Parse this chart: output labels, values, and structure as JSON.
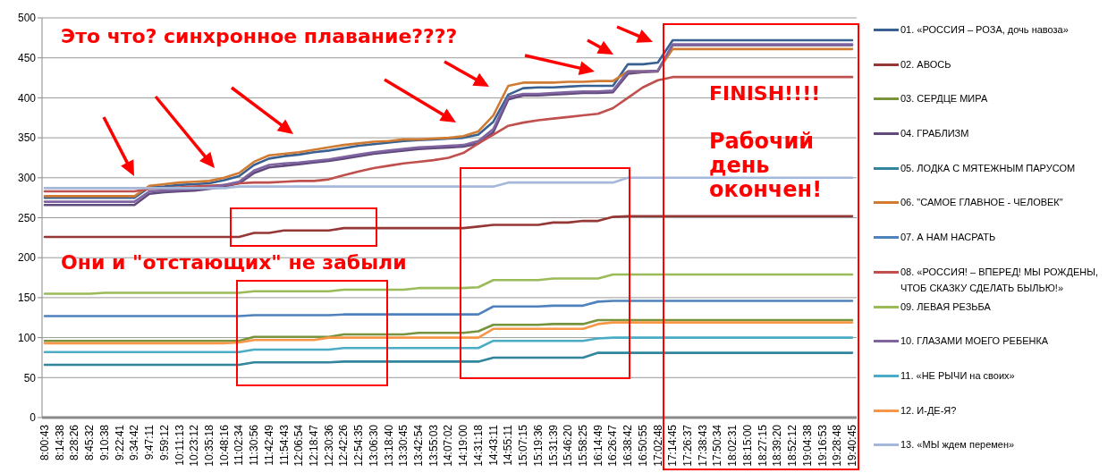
{
  "chart_data": {
    "type": "line",
    "categories": [
      "8:00:43",
      "8:14:38",
      "8:28:26",
      "8:45:32",
      "9:10:38",
      "9:22:41",
      "9:34:42",
      "9:47:11",
      "9:59:12",
      "10:11:13",
      "10:23:12",
      "10:35:18",
      "10:48:16",
      "11:02:34",
      "11:30:56",
      "11:42:49",
      "11:54:43",
      "12:06:54",
      "12:18:47",
      "12:30:36",
      "12:42:26",
      "12:54:35",
      "13:06:30",
      "13:18:40",
      "13:30:45",
      "13:42:54",
      "13:55:03",
      "14:07:02",
      "14:19:00",
      "14:31:18",
      "14:43:11",
      "14:55:11",
      "15:07:15",
      "15:19:36",
      "15:31:39",
      "15:46:20",
      "15:58:25",
      "16:14:49",
      "16:26:47",
      "16:38:42",
      "16:50:55",
      "17:02:48",
      "17:14:45",
      "17:26:37",
      "17:38:43",
      "17:50:34",
      "18:02:31",
      "18:15:00",
      "18:27:15",
      "18:39:20",
      "18:52:12",
      "19:04:38",
      "19:16:53",
      "19:28:48",
      "19:40:45"
    ],
    "series": [
      {
        "name": "01. «РОССИЯ – РОЗА, дочь навоза»",
        "color": "#386192",
        "values": [
          275,
          275,
          275,
          275,
          275,
          275,
          275,
          288,
          289,
          291,
          292,
          293,
          297,
          302,
          316,
          324,
          327,
          329,
          332,
          334,
          337,
          340,
          342,
          344,
          346,
          347,
          348,
          349,
          350,
          354,
          370,
          404,
          412,
          413,
          413,
          414,
          415,
          415,
          415,
          442,
          442,
          444,
          472,
          472,
          472,
          472,
          472,
          472,
          472,
          472,
          472,
          472,
          472,
          472,
          472
        ]
      },
      {
        "name": "02. АВОСЬ",
        "color": "#953735",
        "values": [
          226,
          226,
          226,
          226,
          226,
          226,
          226,
          226,
          226,
          226,
          226,
          226,
          226,
          226,
          231,
          231,
          234,
          234,
          234,
          234,
          237,
          237,
          237,
          237,
          237,
          237,
          237,
          237,
          237,
          239,
          241,
          241,
          241,
          241,
          244,
          244,
          246,
          246,
          251,
          252,
          252,
          252,
          252,
          252,
          252,
          252,
          252,
          252,
          252,
          252,
          252,
          252,
          252,
          252,
          252
        ]
      },
      {
        "name": "03. СЕРДЦЕ МИРА",
        "color": "#77933c",
        "values": [
          96,
          96,
          96,
          96,
          96,
          96,
          96,
          96,
          96,
          96,
          96,
          96,
          96,
          96,
          101,
          101,
          101,
          101,
          101,
          101,
          104,
          104,
          104,
          104,
          104,
          106,
          106,
          106,
          106,
          108,
          116,
          116,
          116,
          116,
          117,
          117,
          117,
          122,
          122,
          122,
          122,
          122,
          122,
          122,
          122,
          122,
          122,
          122,
          122,
          122,
          122,
          122,
          122,
          122,
          122
        ]
      },
      {
        "name": "04. ГРАБЛИЗМ",
        "color": "#604a7b",
        "values": [
          266,
          266,
          266,
          266,
          266,
          266,
          266,
          280,
          282,
          283,
          284,
          286,
          289,
          293,
          306,
          313,
          315,
          317,
          319,
          321,
          324,
          327,
          330,
          332,
          334,
          336,
          337,
          338,
          339,
          343,
          357,
          398,
          403,
          403,
          404,
          405,
          406,
          406,
          407,
          430,
          432,
          433,
          466,
          466,
          466,
          466,
          466,
          466,
          466,
          466,
          466,
          466,
          466,
          466,
          466
        ]
      },
      {
        "name": "05. ЛОДКА С МЯТЕЖНЫМ ПАРУСОМ",
        "color": "#31859c",
        "values": [
          66,
          66,
          66,
          66,
          66,
          66,
          66,
          66,
          66,
          66,
          66,
          66,
          66,
          66,
          69,
          69,
          69,
          69,
          69,
          69,
          70,
          70,
          70,
          70,
          70,
          70,
          70,
          70,
          70,
          70,
          75,
          75,
          75,
          75,
          75,
          75,
          75,
          81,
          81,
          81,
          81,
          81,
          81,
          81,
          81,
          81,
          81,
          81,
          81,
          81,
          81,
          81,
          81,
          81,
          81
        ]
      },
      {
        "name": "06. \"САМОЕ ГЛАВНОЕ - ЧЕЛОВЕК\"",
        "color": "#d07a32",
        "values": [
          277,
          277,
          277,
          277,
          277,
          277,
          277,
          290,
          292,
          294,
          295,
          296,
          300,
          306,
          320,
          328,
          330,
          332,
          335,
          338,
          341,
          343,
          345,
          346,
          348,
          348,
          349,
          350,
          352,
          358,
          378,
          415,
          419,
          419,
          419,
          420,
          420,
          421,
          421,
          433,
          433,
          434,
          461,
          461,
          461,
          461,
          461,
          461,
          461,
          461,
          461,
          461,
          461,
          461,
          461
        ]
      },
      {
        "name": "07. А НАМ НАСРАТЬ",
        "color": "#4f81bd",
        "values": [
          127,
          127,
          127,
          127,
          127,
          127,
          127,
          127,
          127,
          127,
          127,
          127,
          127,
          127,
          128,
          128,
          128,
          128,
          128,
          128,
          129,
          129,
          129,
          129,
          129,
          129,
          129,
          129,
          129,
          129,
          139,
          139,
          139,
          139,
          140,
          140,
          140,
          145,
          146,
          146,
          146,
          146,
          146,
          146,
          146,
          146,
          146,
          146,
          146,
          146,
          146,
          146,
          146,
          146,
          146
        ]
      },
      {
        "name": "08. «РОССИЯ! – ВПЕРЕД! МЫ РОЖДЕНЫ, ЧТОБ СКАЗКУ СДЕЛАТЬ БЫЛЬЮ!»",
        "color": "#c0504d",
        "values": [
          283,
          283,
          283,
          283,
          283,
          283,
          283,
          286,
          287,
          288,
          289,
          290,
          291,
          293,
          294,
          294,
          295,
          296,
          296,
          298,
          303,
          308,
          312,
          315,
          318,
          320,
          322,
          325,
          331,
          343,
          354,
          365,
          369,
          372,
          374,
          376,
          378,
          380,
          387,
          400,
          413,
          422,
          426,
          426,
          426,
          426,
          426,
          426,
          426,
          426,
          426,
          426,
          426,
          426,
          426
        ]
      },
      {
        "name": "09. ЛЕВАЯ РЕЗЬБА",
        "color": "#9bbb59",
        "values": [
          155,
          155,
          155,
          155,
          156,
          156,
          156,
          156,
          156,
          156,
          156,
          156,
          156,
          156,
          158,
          158,
          158,
          158,
          158,
          158,
          160,
          160,
          160,
          160,
          160,
          162,
          162,
          162,
          162,
          163,
          172,
          172,
          172,
          172,
          174,
          174,
          174,
          174,
          179,
          179,
          179,
          179,
          179,
          179,
          179,
          179,
          179,
          179,
          179,
          179,
          179,
          179,
          179,
          179,
          179
        ]
      },
      {
        "name": "10. ГЛАЗАМИ МОЕГО РЕБЕНКА",
        "color": "#8064a2",
        "values": [
          270,
          270,
          270,
          270,
          270,
          270,
          270,
          283,
          284,
          285,
          286,
          288,
          291,
          295,
          309,
          316,
          318,
          319,
          321,
          323,
          326,
          329,
          332,
          334,
          336,
          338,
          339,
          340,
          341,
          346,
          361,
          401,
          405,
          405,
          406,
          407,
          408,
          408,
          409,
          433,
          433,
          434,
          467,
          467,
          467,
          467,
          467,
          467,
          467,
          467,
          467,
          467,
          467,
          467,
          467
        ]
      },
      {
        "name": "11. «НЕ РЫЧИ на своих»",
        "color": "#4bacc6",
        "values": [
          82,
          82,
          82,
          82,
          82,
          82,
          82,
          82,
          82,
          82,
          82,
          82,
          82,
          82,
          85,
          85,
          85,
          85,
          85,
          85,
          87,
          87,
          87,
          87,
          87,
          87,
          87,
          87,
          87,
          87,
          96,
          96,
          96,
          96,
          96,
          96,
          96,
          99,
          100,
          100,
          100,
          100,
          100,
          100,
          100,
          100,
          100,
          100,
          100,
          100,
          100,
          100,
          100,
          100,
          100
        ]
      },
      {
        "name": "12. И-ДЕ-Я?",
        "color": "#f79646",
        "values": [
          93,
          93,
          93,
          93,
          93,
          93,
          93,
          93,
          93,
          93,
          93,
          93,
          93,
          94,
          97,
          97,
          97,
          97,
          97,
          100,
          100,
          100,
          100,
          100,
          100,
          100,
          100,
          100,
          100,
          100,
          111,
          111,
          111,
          111,
          111,
          111,
          111,
          117,
          119,
          119,
          119,
          119,
          119,
          119,
          119,
          119,
          119,
          119,
          119,
          119,
          119,
          119,
          119,
          119,
          119
        ]
      },
      {
        "name": "13. «МЫ ждем перемен»",
        "color": "#a5b8d9",
        "values": [
          287,
          287,
          287,
          287,
          287,
          287,
          287,
          287,
          287,
          287,
          287,
          287,
          287,
          289,
          289,
          289,
          289,
          289,
          289,
          289,
          289,
          289,
          289,
          289,
          289,
          289,
          289,
          289,
          289,
          289,
          289,
          294,
          294,
          294,
          294,
          294,
          294,
          294,
          294,
          300,
          300,
          300,
          300,
          300,
          300,
          300,
          300,
          300,
          300,
          300,
          300,
          300,
          300,
          300,
          300
        ]
      }
    ],
    "ylim": [
      0,
      500
    ],
    "yticks": [
      0,
      50,
      100,
      150,
      200,
      250,
      300,
      350,
      400,
      450,
      500
    ],
    "grid": "y",
    "legend": "right",
    "annotations": [
      "Это что? синхронное плавание????",
      "Они и \"отстающих\" не забыли",
      "FINISH!!!!",
      "Рабочий день окончен!"
    ]
  }
}
